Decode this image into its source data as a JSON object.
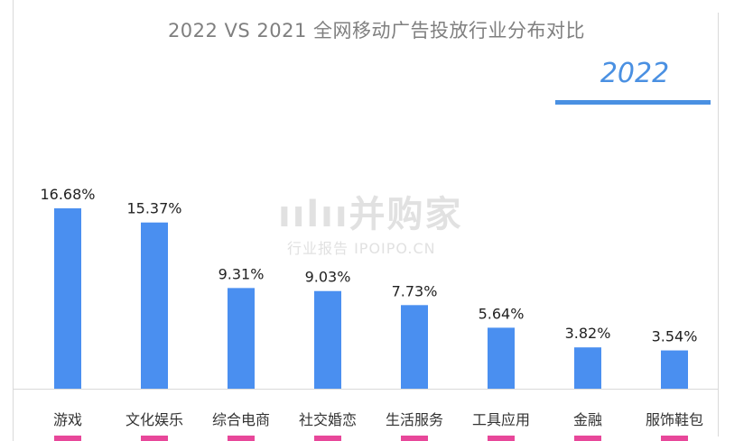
{
  "title": "2022 VS 2021 全网移动广告投放行业分布对比",
  "year_label": "2022",
  "watermark": {
    "logo": "ıılıı并购家",
    "sub": "行业报告 IPOIPO.CN"
  },
  "colors": {
    "bar": "#4a8ff0",
    "bar_2021_stub": "#e8479a",
    "title": "#7f7f7f",
    "accent": "#4a90e2"
  },
  "chart_data": {
    "type": "bar",
    "title": "2022 VS 2021 全网移动广告投放行业分布对比",
    "series": [
      {
        "name": "2022",
        "values": [
          16.68,
          15.37,
          9.31,
          9.03,
          7.73,
          5.64,
          3.82,
          3.54
        ]
      }
    ],
    "categories": [
      "游戏",
      "文化娱乐",
      "综合电商",
      "社交婚恋",
      "生活服务",
      "工具应用",
      "金融",
      "服饰鞋包"
    ],
    "value_labels": [
      "16.68%",
      "15.37%",
      "9.31%",
      "9.03%",
      "7.73%",
      "5.64%",
      "3.82%",
      "3.54%"
    ],
    "ylim": [
      0,
      18
    ],
    "grid": false,
    "legend": "top-right"
  }
}
